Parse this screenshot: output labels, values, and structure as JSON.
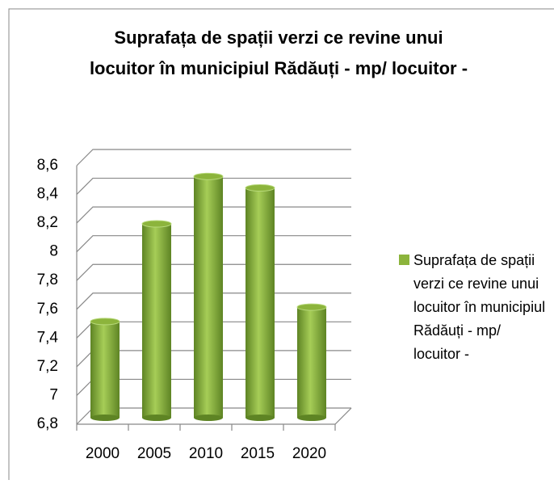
{
  "chart_data": {
    "type": "bar",
    "title": "Suprafața de spații verzi ce revine unui locuitor în municipiul Rădăuți - mp/ locuitor -",
    "categories": [
      "2000",
      "2005",
      "2010",
      "2015",
      "2020"
    ],
    "series": [
      {
        "name": "Suprafața de spații verzi ce revine unui locuitor în municipiul Rădăuți - mp/ locuitor -",
        "color": "#8cb43c",
        "values": [
          7.47,
          8.15,
          8.48,
          8.4,
          7.57
        ]
      }
    ],
    "ylim": [
      6.8,
      8.6
    ],
    "yticks": [
      {
        "value": 6.8,
        "label": "6,8"
      },
      7,
      {
        "value": 7.2,
        "label": "7,2"
      },
      {
        "value": 7.4,
        "label": "7,4"
      },
      {
        "value": 7.6,
        "label": "7,6"
      },
      {
        "value": 7.8,
        "label": "7,8"
      },
      8,
      {
        "value": 8.2,
        "label": "8,2"
      },
      {
        "value": 8.4,
        "label": "8,4"
      },
      {
        "value": 8.6,
        "label": "8,6"
      }
    ],
    "grid": true,
    "legend": "right"
  }
}
